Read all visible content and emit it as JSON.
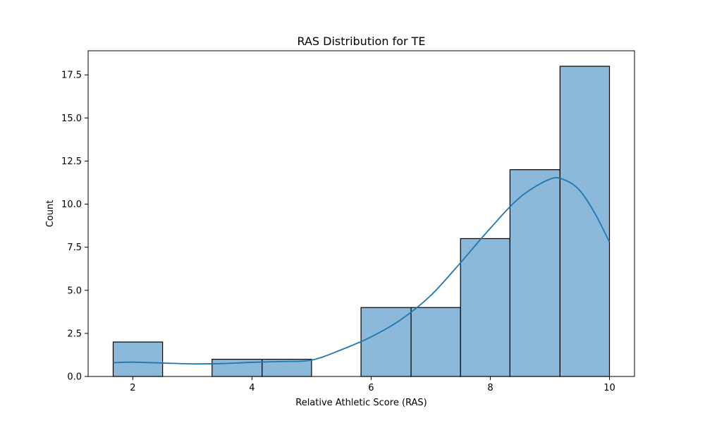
{
  "chart_data": {
    "type": "bar",
    "title": "RAS Distribution for TE",
    "xlabel": "Relative Athletic Score (RAS)",
    "ylabel": "Count",
    "xlim": [
      1.25,
      10.42
    ],
    "ylim": [
      0,
      18.9
    ],
    "xticks": [
      2,
      4,
      6,
      8,
      10
    ],
    "yticks": [
      0.0,
      2.5,
      5.0,
      7.5,
      10.0,
      12.5,
      15.0,
      17.5
    ],
    "bins": [
      {
        "x0": 1.67,
        "x1": 2.5,
        "count": 2
      },
      {
        "x0": 2.5,
        "x1": 3.33,
        "count": 0
      },
      {
        "x0": 3.33,
        "x1": 4.17,
        "count": 1
      },
      {
        "x0": 4.17,
        "x1": 5.0,
        "count": 1
      },
      {
        "x0": 5.0,
        "x1": 5.83,
        "count": 0
      },
      {
        "x0": 5.83,
        "x1": 6.67,
        "count": 4
      },
      {
        "x0": 6.67,
        "x1": 7.5,
        "count": 4
      },
      {
        "x0": 7.5,
        "x1": 8.33,
        "count": 8
      },
      {
        "x0": 8.33,
        "x1": 9.17,
        "count": 12
      },
      {
        "x0": 9.17,
        "x1": 10.0,
        "count": 18
      }
    ],
    "kde": {
      "x": [
        1.67,
        2.0,
        2.5,
        3.0,
        3.5,
        4.0,
        4.5,
        5.0,
        5.5,
        6.0,
        6.5,
        7.0,
        7.5,
        8.0,
        8.5,
        9.0,
        9.25,
        9.5,
        9.75,
        10.0
      ],
      "y": [
        0.8,
        0.83,
        0.78,
        0.73,
        0.75,
        0.82,
        0.87,
        0.95,
        1.55,
        2.3,
        3.3,
        4.7,
        6.6,
        8.6,
        10.4,
        11.45,
        11.4,
        10.8,
        9.5,
        7.8
      ]
    },
    "colors": {
      "bar_fill": "#8cb8d9",
      "bar_edge": "#000000",
      "kde_line": "#1f77b4"
    },
    "grid": false,
    "legend": "none"
  }
}
